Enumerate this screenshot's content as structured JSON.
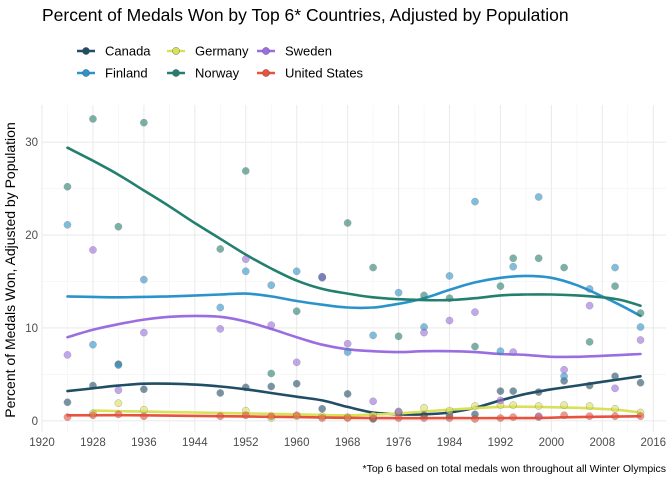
{
  "chart_data": {
    "type": "scatter",
    "title": "Percent of Medals Won by Top 6* Countries, Adjusted by Population",
    "xlabel": "",
    "ylabel": "Percent of Medals Won, Adjusted by Population",
    "caption": "*Top 6 based on total medals won throughout all Winter Olympics",
    "xlim": [
      1920,
      2018
    ],
    "ylim": [
      -1.2,
      34
    ],
    "x_ticks": [
      1920,
      1928,
      1936,
      1944,
      1952,
      1960,
      1968,
      1976,
      1984,
      1992,
      2000,
      2008,
      2016
    ],
    "y_ticks": [
      0,
      10,
      20,
      30
    ],
    "grid": true,
    "legend_position": "top-left",
    "legend_layout": [
      [
        "Canada",
        "Germany",
        "Sweden"
      ],
      [
        "Finland",
        "Norway",
        "United States"
      ]
    ],
    "series": [
      {
        "name": "Canada",
        "color": "#1f4e66",
        "points": [
          [
            1924,
            2.0
          ],
          [
            1928,
            3.8
          ],
          [
            1932,
            6.1
          ],
          [
            1936,
            3.4
          ],
          [
            1948,
            3.0
          ],
          [
            1952,
            3.6
          ],
          [
            1956,
            3.7
          ],
          [
            1960,
            4.0
          ],
          [
            1964,
            1.3
          ],
          [
            1968,
            2.9
          ],
          [
            1972,
            0.2
          ],
          [
            1976,
            0.9
          ],
          [
            1980,
            0.6
          ],
          [
            1984,
            0.6
          ],
          [
            1988,
            0.7
          ],
          [
            1992,
            3.2
          ],
          [
            1994,
            3.2
          ],
          [
            1998,
            3.1
          ],
          [
            2002,
            4.3
          ],
          [
            2006,
            3.8
          ],
          [
            2010,
            4.8
          ],
          [
            2014,
            4.1
          ]
        ],
        "trend": [
          [
            1924,
            3.2
          ],
          [
            1928,
            3.5
          ],
          [
            1932,
            3.8
          ],
          [
            1936,
            4.0
          ],
          [
            1940,
            4.0
          ],
          [
            1944,
            3.9
          ],
          [
            1948,
            3.7
          ],
          [
            1952,
            3.4
          ],
          [
            1956,
            3.0
          ],
          [
            1960,
            2.6
          ],
          [
            1964,
            2.2
          ],
          [
            1968,
            1.5
          ],
          [
            1972,
            0.9
          ],
          [
            1976,
            0.7
          ],
          [
            1980,
            0.7
          ],
          [
            1984,
            0.9
          ],
          [
            1988,
            1.4
          ],
          [
            1992,
            2.2
          ],
          [
            1996,
            2.9
          ],
          [
            2000,
            3.4
          ],
          [
            2004,
            3.8
          ],
          [
            2008,
            4.2
          ],
          [
            2014,
            4.8
          ]
        ]
      },
      {
        "name": "Finland",
        "color": "#2b93cc",
        "points": [
          [
            1924,
            21.1
          ],
          [
            1928,
            8.2
          ],
          [
            1932,
            6.0
          ],
          [
            1936,
            15.2
          ],
          [
            1948,
            12.2
          ],
          [
            1952,
            16.1
          ],
          [
            1956,
            14.6
          ],
          [
            1960,
            16.1
          ],
          [
            1964,
            15.4
          ],
          [
            1968,
            7.4
          ],
          [
            1972,
            9.2
          ],
          [
            1976,
            13.8
          ],
          [
            1980,
            10.1
          ],
          [
            1984,
            15.6
          ],
          [
            1988,
            23.6
          ],
          [
            1992,
            7.5
          ],
          [
            1994,
            16.6
          ],
          [
            1998,
            24.1
          ],
          [
            2002,
            4.8
          ],
          [
            2006,
            14.2
          ],
          [
            2010,
            16.5
          ],
          [
            2014,
            10.1
          ]
        ],
        "trend": [
          [
            1924,
            13.4
          ],
          [
            1932,
            13.3
          ],
          [
            1940,
            13.4
          ],
          [
            1948,
            13.6
          ],
          [
            1952,
            13.7
          ],
          [
            1956,
            13.4
          ],
          [
            1960,
            12.9
          ],
          [
            1964,
            12.5
          ],
          [
            1968,
            12.2
          ],
          [
            1972,
            12.2
          ],
          [
            1976,
            12.6
          ],
          [
            1980,
            13.2
          ],
          [
            1984,
            14.1
          ],
          [
            1988,
            14.9
          ],
          [
            1992,
            15.4
          ],
          [
            1996,
            15.6
          ],
          [
            2000,
            15.4
          ],
          [
            2004,
            14.6
          ],
          [
            2008,
            13.4
          ],
          [
            2011,
            12.4
          ],
          [
            2014,
            11.3
          ]
        ]
      },
      {
        "name": "Germany",
        "color": "#d9e15a",
        "points": [
          [
            1928,
            0.8
          ],
          [
            1932,
            1.9
          ],
          [
            1936,
            1.2
          ],
          [
            1952,
            1.1
          ],
          [
            1956,
            0.3
          ],
          [
            1960,
            0.5
          ],
          [
            1964,
            0.5
          ],
          [
            1968,
            0.4
          ],
          [
            1972,
            0.6
          ],
          [
            1976,
            1.0
          ],
          [
            1980,
            1.4
          ],
          [
            1984,
            1.1
          ],
          [
            1988,
            1.6
          ],
          [
            1992,
            1.7
          ],
          [
            1994,
            1.7
          ],
          [
            1998,
            1.6
          ],
          [
            2002,
            1.7
          ],
          [
            2006,
            1.6
          ],
          [
            2010,
            1.3
          ],
          [
            2014,
            0.9
          ]
        ],
        "trend": [
          [
            1928,
            1.1
          ],
          [
            1936,
            1.0
          ],
          [
            1944,
            0.9
          ],
          [
            1952,
            0.8
          ],
          [
            1960,
            0.7
          ],
          [
            1968,
            0.6
          ],
          [
            1976,
            0.8
          ],
          [
            1984,
            1.2
          ],
          [
            1992,
            1.5
          ],
          [
            1998,
            1.5
          ],
          [
            2004,
            1.4
          ],
          [
            2010,
            1.2
          ],
          [
            2014,
            0.9
          ]
        ]
      },
      {
        "name": "Norway",
        "color": "#23806e",
        "points": [
          [
            1924,
            25.2
          ],
          [
            1928,
            32.5
          ],
          [
            1932,
            20.9
          ],
          [
            1936,
            32.1
          ],
          [
            1948,
            18.5
          ],
          [
            1952,
            26.9
          ],
          [
            1956,
            5.1
          ],
          [
            1960,
            11.8
          ],
          [
            1964,
            15.5
          ],
          [
            1968,
            21.3
          ],
          [
            1972,
            16.5
          ],
          [
            1976,
            9.1
          ],
          [
            1980,
            13.5
          ],
          [
            1984,
            13.2
          ],
          [
            1988,
            8.0
          ],
          [
            1992,
            14.5
          ],
          [
            1994,
            17.5
          ],
          [
            1998,
            17.5
          ],
          [
            2002,
            16.5
          ],
          [
            2006,
            8.5
          ],
          [
            2010,
            14.5
          ],
          [
            2014,
            11.6
          ]
        ],
        "trend": [
          [
            1924,
            29.4
          ],
          [
            1928,
            28.0
          ],
          [
            1932,
            26.5
          ],
          [
            1936,
            24.8
          ],
          [
            1940,
            23.1
          ],
          [
            1944,
            21.3
          ],
          [
            1948,
            19.6
          ],
          [
            1952,
            17.9
          ],
          [
            1956,
            16.4
          ],
          [
            1960,
            15.1
          ],
          [
            1964,
            14.2
          ],
          [
            1968,
            13.7
          ],
          [
            1972,
            13.3
          ],
          [
            1976,
            13.1
          ],
          [
            1980,
            13.0
          ],
          [
            1984,
            13.0
          ],
          [
            1988,
            13.2
          ],
          [
            1992,
            13.5
          ],
          [
            1996,
            13.6
          ],
          [
            2000,
            13.6
          ],
          [
            2004,
            13.5
          ],
          [
            2008,
            13.3
          ],
          [
            2011,
            13.0
          ],
          [
            2014,
            12.4
          ]
        ]
      },
      {
        "name": "Sweden",
        "color": "#9a6ee0",
        "points": [
          [
            1924,
            7.1
          ],
          [
            1928,
            18.4
          ],
          [
            1932,
            3.3
          ],
          [
            1936,
            9.5
          ],
          [
            1948,
            9.9
          ],
          [
            1952,
            17.4
          ],
          [
            1956,
            10.3
          ],
          [
            1960,
            6.3
          ],
          [
            1964,
            15.5
          ],
          [
            1968,
            8.3
          ],
          [
            1972,
            2.1
          ],
          [
            1976,
            1.0
          ],
          [
            1980,
            9.5
          ],
          [
            1984,
            10.8
          ],
          [
            1988,
            11.7
          ],
          [
            1992,
            2.2
          ],
          [
            1994,
            7.4
          ],
          [
            1998,
            0.5
          ],
          [
            2002,
            5.5
          ],
          [
            2006,
            12.4
          ],
          [
            2010,
            3.5
          ],
          [
            2014,
            8.7
          ]
        ],
        "trend": [
          [
            1924,
            9.0
          ],
          [
            1928,
            9.8
          ],
          [
            1932,
            10.4
          ],
          [
            1936,
            10.9
          ],
          [
            1940,
            11.2
          ],
          [
            1944,
            11.3
          ],
          [
            1948,
            11.2
          ],
          [
            1952,
            10.7
          ],
          [
            1956,
            9.9
          ],
          [
            1960,
            9.0
          ],
          [
            1964,
            8.2
          ],
          [
            1968,
            7.7
          ],
          [
            1972,
            7.5
          ],
          [
            1976,
            7.4
          ],
          [
            1980,
            7.5
          ],
          [
            1984,
            7.5
          ],
          [
            1988,
            7.4
          ],
          [
            1992,
            7.2
          ],
          [
            1996,
            7.1
          ],
          [
            2000,
            6.9
          ],
          [
            2004,
            6.9
          ],
          [
            2008,
            7.0
          ],
          [
            2014,
            7.2
          ]
        ]
      },
      {
        "name": "United States",
        "color": "#e8533d",
        "points": [
          [
            1924,
            0.4
          ],
          [
            1928,
            0.6
          ],
          [
            1932,
            0.7
          ],
          [
            1936,
            0.5
          ],
          [
            1948,
            0.5
          ],
          [
            1952,
            0.6
          ],
          [
            1956,
            0.5
          ],
          [
            1960,
            0.6
          ],
          [
            1964,
            0.3
          ],
          [
            1968,
            0.3
          ],
          [
            1972,
            0.3
          ],
          [
            1976,
            0.3
          ],
          [
            1980,
            0.3
          ],
          [
            1984,
            0.3
          ],
          [
            1988,
            0.2
          ],
          [
            1992,
            0.3
          ],
          [
            1994,
            0.4
          ],
          [
            1998,
            0.4
          ],
          [
            2002,
            0.6
          ],
          [
            2006,
            0.5
          ],
          [
            2010,
            0.5
          ],
          [
            2014,
            0.5
          ]
        ],
        "trend": [
          [
            1924,
            0.6
          ],
          [
            1936,
            0.6
          ],
          [
            1948,
            0.5
          ],
          [
            1960,
            0.4
          ],
          [
            1972,
            0.3
          ],
          [
            1984,
            0.3
          ],
          [
            1996,
            0.3
          ],
          [
            2004,
            0.4
          ],
          [
            2014,
            0.5
          ]
        ]
      }
    ]
  }
}
